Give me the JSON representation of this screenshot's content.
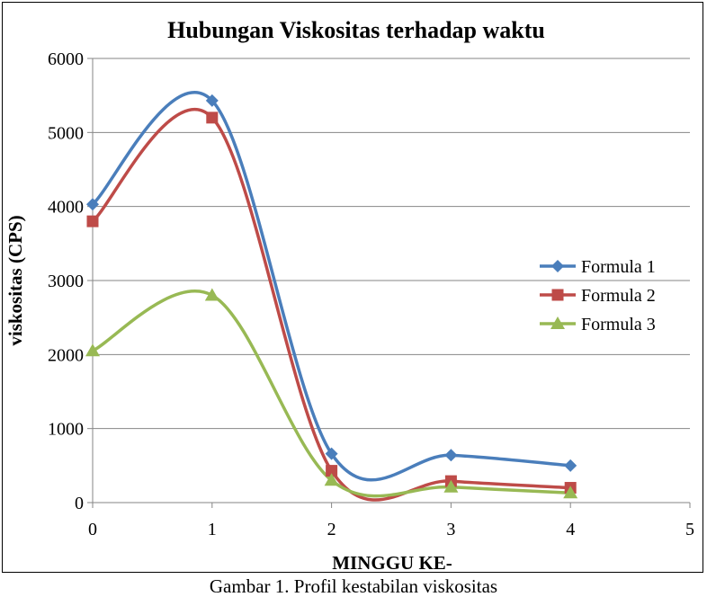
{
  "chart_data": {
    "type": "line",
    "title": "Hubungan Viskositas terhadap waktu",
    "xlabel": "MINGGU KE-",
    "ylabel": "viskositas (CPS)",
    "x": [
      0,
      1,
      2,
      3,
      4
    ],
    "xlim": [
      0,
      5
    ],
    "ylim": [
      0,
      6000
    ],
    "xticks": [
      "0",
      "1",
      "2",
      "3",
      "4",
      "5"
    ],
    "yticks": [
      "0",
      "1000",
      "2000",
      "3000",
      "4000",
      "5000",
      "6000"
    ],
    "grid": "horizontal",
    "smooth": true,
    "legend_position": "right",
    "series": [
      {
        "name": "Formula 1",
        "values": [
          4030,
          5430,
          660,
          640,
          500
        ],
        "color": "#4a7ebb",
        "marker": "diamond"
      },
      {
        "name": "Formula 2",
        "values": [
          3800,
          5200,
          430,
          290,
          200
        ],
        "color": "#be4b48",
        "marker": "square"
      },
      {
        "name": "Formula 3",
        "values": [
          2050,
          2800,
          300,
          210,
          130
        ],
        "color": "#98b954",
        "marker": "triangle"
      }
    ]
  },
  "caption": "Gambar 1. Profil kestabilan viskositas"
}
